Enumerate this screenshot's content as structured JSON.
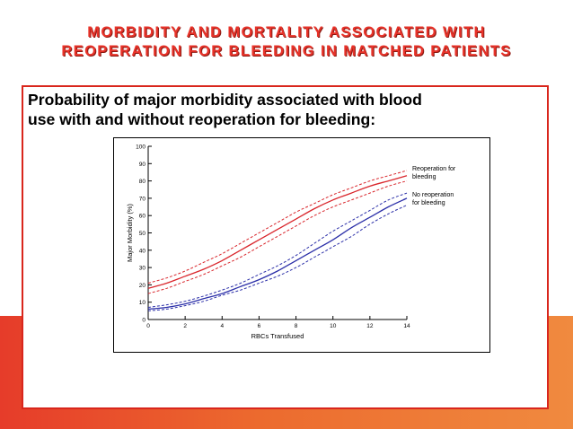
{
  "slide": {
    "title_line1": "MORBIDITY AND MORTALITY ASSOCIATED WITH",
    "title_line2": "REOPERATION FOR BLEEDING IN MATCHED PATIENTS",
    "heading_line1": "Probability of major morbidity associated with blood",
    "heading_line2": "use with and without reoperation for bleeding:"
  },
  "colors": {
    "title": "#e8332a",
    "box_border": "#d9261c",
    "series_reop": "#d9262c",
    "series_noreop": "#2b2fa8"
  },
  "chart_data": {
    "type": "line",
    "xlabel": "RBCs Transfused",
    "ylabel": "Major Morbidity (%)",
    "xlim": [
      0,
      14
    ],
    "ylim": [
      0,
      100
    ],
    "xticks": [
      0,
      2,
      4,
      6,
      8,
      10,
      12,
      14
    ],
    "yticks": [
      0,
      10,
      20,
      30,
      40,
      50,
      60,
      70,
      80,
      90,
      100
    ],
    "grid": false,
    "legend": "right",
    "x": [
      0,
      1,
      2,
      3,
      4,
      5,
      6,
      7,
      8,
      9,
      10,
      11,
      12,
      13,
      14
    ],
    "series": [
      {
        "name": "Reoperation for bleeding",
        "line1": "Reoperation for",
        "line2": "bleeding",
        "color": "#d9262c",
        "values": [
          18,
          21,
          25,
          29,
          34,
          40,
          46,
          52,
          58,
          64,
          69,
          73,
          77,
          80,
          83
        ],
        "upper": [
          21,
          24,
          28,
          33,
          38,
          44,
          50,
          56,
          62,
          67,
          72,
          76,
          80,
          83,
          86
        ],
        "lower": [
          15,
          18,
          22,
          26,
          31,
          36,
          42,
          48,
          54,
          60,
          65,
          69,
          73,
          77,
          80
        ]
      },
      {
        "name": "No reoperation for bleeding",
        "line1": "No reoperation",
        "line2": "for bleeding",
        "color": "#2b2fa8",
        "values": [
          6,
          7,
          9,
          12,
          15,
          19,
          23,
          28,
          34,
          40,
          46,
          53,
          59,
          65,
          70
        ],
        "upper": [
          7,
          8.5,
          10.5,
          13.5,
          17,
          21,
          26,
          31,
          37,
          44,
          51,
          57,
          63,
          69,
          73
        ],
        "lower": [
          5,
          6,
          8,
          10.5,
          14,
          17,
          21,
          25,
          30,
          36,
          42,
          48,
          55,
          61,
          66
        ]
      }
    ]
  }
}
